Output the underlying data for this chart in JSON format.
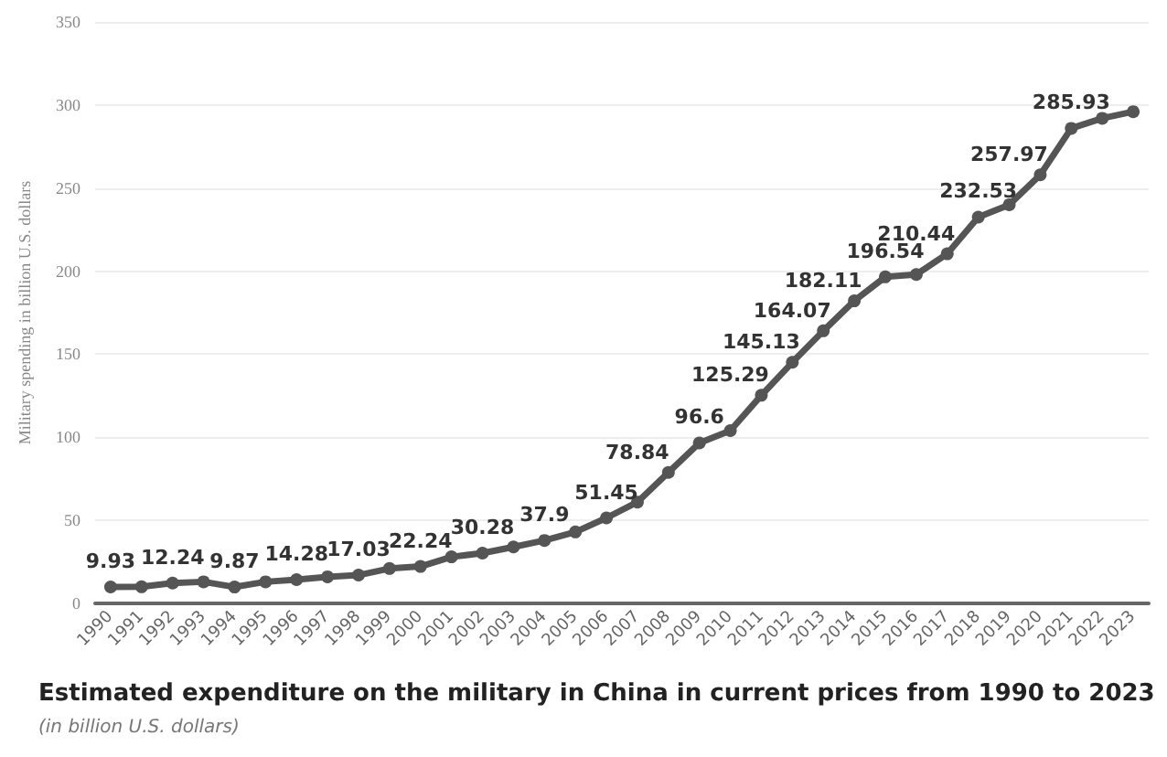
{
  "chart_data": {
    "type": "line",
    "title": "Estimated expenditure on the military in China in current prices from 1990 to 2023",
    "subtitle": "(in billion U.S. dollars)",
    "ylabel": "Military spending in billion U.S. dollars",
    "categories": [
      "1990",
      "1991",
      "1992",
      "1993",
      "1994",
      "1995",
      "1996",
      "1997",
      "1998",
      "1999",
      "2000",
      "2001",
      "2002",
      "2003",
      "2004",
      "2005",
      "2006",
      "2007",
      "2008",
      "2009",
      "2010",
      "2011",
      "2012",
      "2013",
      "2014",
      "2015",
      "2016",
      "2017",
      "2018",
      "2019",
      "2020",
      "2021",
      "2022",
      "2023"
    ],
    "series": [
      {
        "color": "#555555",
        "values": [
          9.93,
          10,
          12.24,
          13,
          9.87,
          13,
          14.28,
          16,
          17.03,
          21,
          22.24,
          28,
          30.28,
          34,
          37.9,
          43,
          51.45,
          61,
          78.84,
          96.6,
          104,
          125.29,
          145.13,
          164.07,
          182.11,
          196.54,
          198,
          210.44,
          232.53,
          240,
          257.97,
          285.93,
          292,
          296
        ],
        "value_labels": [
          "9.93",
          null,
          "12.24",
          null,
          "9.87",
          null,
          "14.28",
          null,
          "17.03",
          null,
          "22.24",
          null,
          "30.28",
          null,
          "37.9",
          null,
          "51.45",
          null,
          "78.84",
          "96.6",
          null,
          "125.29",
          "145.13",
          "164.07",
          "182.11",
          "196.54",
          null,
          "210.44",
          "232.53",
          null,
          "257.97",
          "285.93",
          null,
          null
        ]
      }
    ],
    "ylim": [
      0,
      350
    ],
    "yticks": [
      0,
      50,
      100,
      150,
      200,
      250,
      300,
      350
    ],
    "grid": "y",
    "marker": "circle",
    "line_style": "solid"
  }
}
